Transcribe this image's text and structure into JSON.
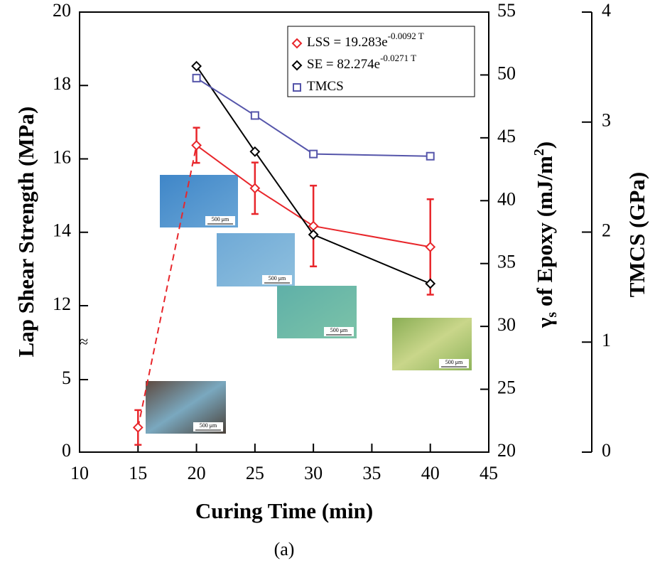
{
  "chart_data": {
    "type": "line",
    "xlabel": "Curing Time (min)",
    "ylabel": "Lap Shear Strength (MPa)",
    "y2label": [
      "γ",
      "s",
      " of Epoxy (mJ/m",
      "2",
      ")"
    ],
    "y3label": "TMCS (GPa)",
    "caption": "(a)",
    "axis_break_symbol": "≈",
    "xlim": [
      10,
      45
    ],
    "xticks": [
      10,
      15,
      20,
      25,
      30,
      35,
      40,
      45
    ],
    "ylim": [
      0,
      20
    ],
    "ybreak": [
      5,
      12
    ],
    "yticks": [
      0,
      5,
      12,
      14,
      16,
      18,
      20
    ],
    "y2lim": [
      20,
      55
    ],
    "y2ticks": [
      20,
      25,
      30,
      35,
      40,
      45,
      50,
      55
    ],
    "y3lim": [
      0,
      4
    ],
    "y3ticks": [
      0,
      1,
      2,
      3,
      4
    ],
    "series": [
      {
        "name": "LSS = 19.283e",
        "name_sup": "-0.0092 T",
        "color": "#e8262b",
        "marker": "diamond",
        "axis": "y",
        "dashed_first_segment": true,
        "x": [
          15,
          20,
          25,
          30,
          40
        ],
        "values": [
          1.7,
          16.37,
          15.2,
          14.17,
          13.6
        ],
        "errors": [
          1.2,
          0.48,
          0.7,
          1.1,
          1.3
        ]
      },
      {
        "name": "SE = 82.274e",
        "name_sup": "-0.0271 T",
        "color": "#000000",
        "marker": "diamond",
        "axis": "y2",
        "x": [
          20,
          25,
          30,
          40
        ],
        "values": [
          50.7,
          43.9,
          37.3,
          33.4
        ]
      },
      {
        "name": "TMCS",
        "color": "#5555aa",
        "marker": "square",
        "axis": "y3",
        "x": [
          20,
          25,
          30,
          40
        ],
        "values": [
          3.4,
          3.06,
          2.71,
          2.69
        ]
      }
    ],
    "insets": [
      {
        "scale_label": "500 μm"
      },
      {
        "scale_label": "500 μm"
      },
      {
        "scale_label": "500 μm"
      },
      {
        "scale_label": "500 μm"
      },
      {
        "scale_label": "500 μm"
      }
    ]
  }
}
